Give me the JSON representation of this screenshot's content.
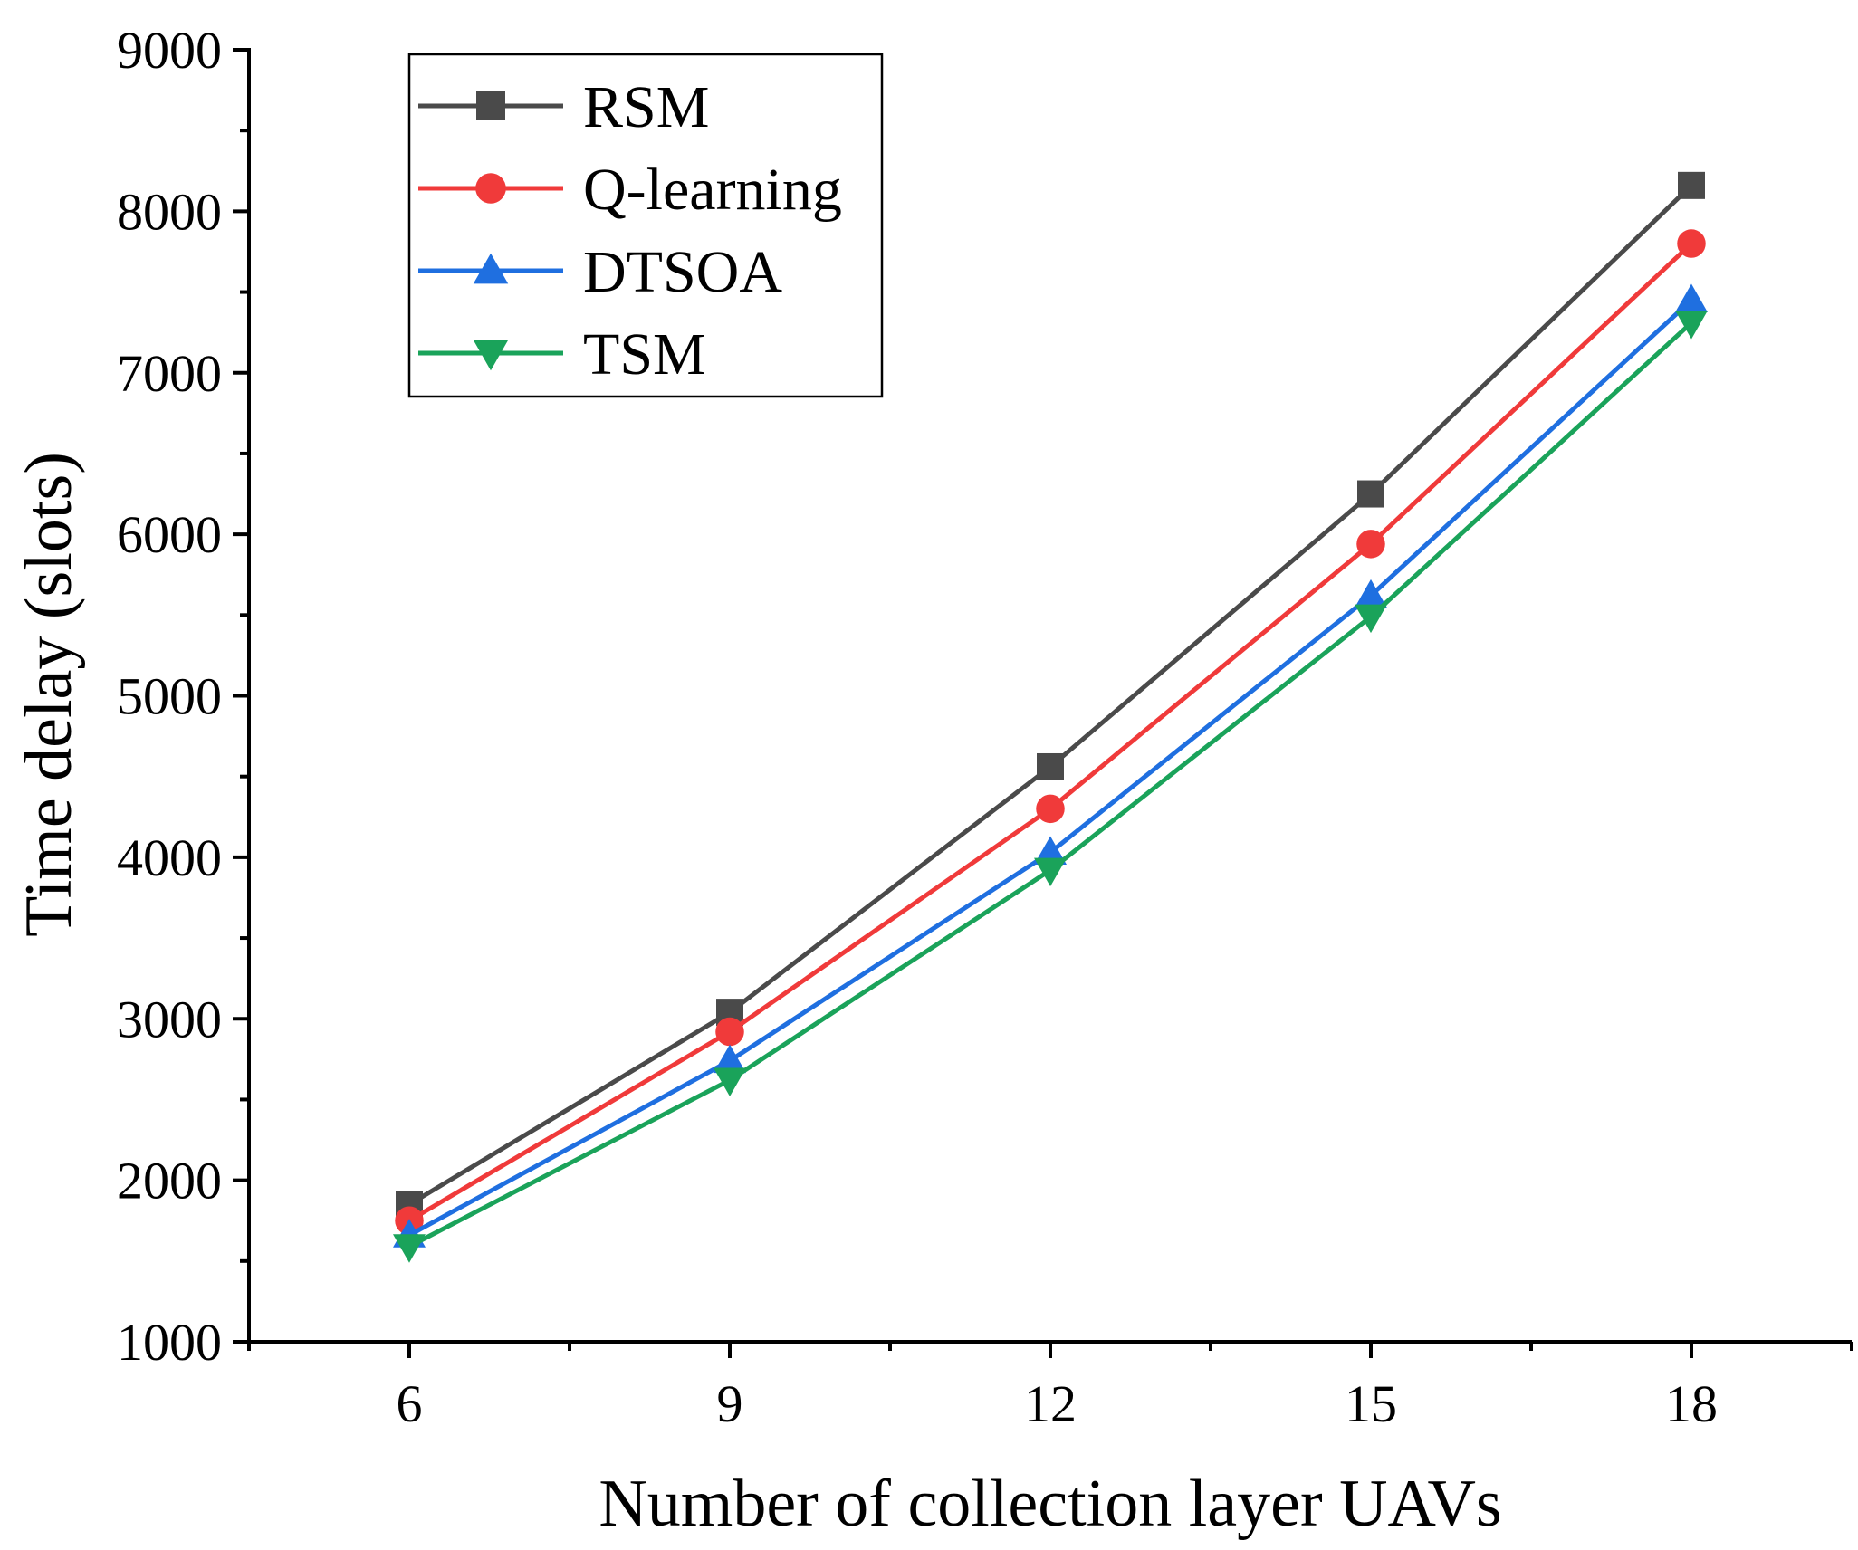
{
  "chart_data": {
    "type": "line",
    "xlabel": "Number of collection layer UAVs",
    "ylabel": "Time delay (slots)",
    "x": [
      6,
      9,
      12,
      15,
      18
    ],
    "xticks": [
      "6",
      "9",
      "12",
      "15",
      "18"
    ],
    "xlim": [
      4.5,
      19.5
    ],
    "ylim": [
      1000,
      9000
    ],
    "yticks": [
      "1000",
      "2000",
      "3000",
      "4000",
      "5000",
      "6000",
      "7000",
      "8000",
      "9000"
    ],
    "grid": false,
    "legend_position": "top-left",
    "series": [
      {
        "name": "RSM",
        "color": "#4a4a4a",
        "marker": "square",
        "values": [
          1850,
          3040,
          4560,
          6250,
          8160
        ]
      },
      {
        "name": "Q-learning",
        "color": "#f03a3a",
        "marker": "circle",
        "values": [
          1750,
          2920,
          4300,
          5940,
          7800
        ]
      },
      {
        "name": "DTSOA",
        "color": "#1f6fe0",
        "marker": "triangle-up",
        "values": [
          1660,
          2740,
          4030,
          5620,
          7450
        ]
      },
      {
        "name": "TSM",
        "color": "#1aa35a",
        "marker": "triangle-down",
        "values": [
          1590,
          2620,
          3920,
          5490,
          7310
        ]
      }
    ]
  }
}
